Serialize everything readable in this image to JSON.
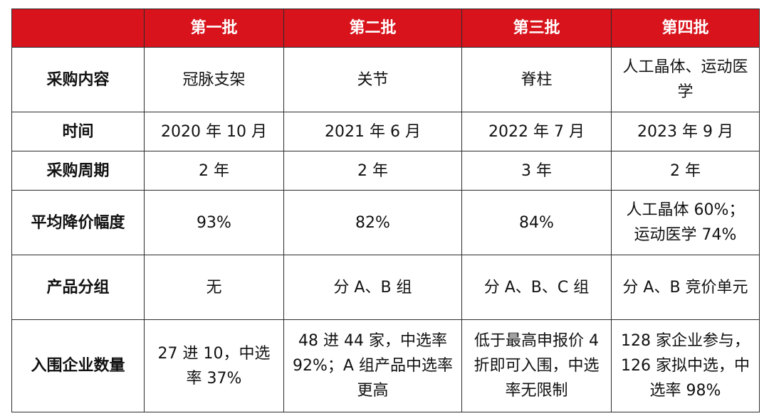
{
  "table": {
    "header": [
      "",
      "第一批",
      "第二批",
      "第三批",
      "第四批"
    ],
    "rows": [
      {
        "label": "采购内容",
        "cells": [
          "冠脉支架",
          "关节",
          "脊柱",
          "人工晶体、运动医学"
        ]
      },
      {
        "label": "时间",
        "cells": [
          "2020 年 10 月",
          "2021 年 6 月",
          "2022 年 7 月",
          "2023 年 9 月"
        ]
      },
      {
        "label": "采购周期",
        "cells": [
          "2 年",
          "2 年",
          "3 年",
          "2 年"
        ]
      },
      {
        "label": "平均降价幅度",
        "cells": [
          "93%",
          "82%",
          "84%",
          "人工晶体 60%；运动医学 74%"
        ]
      },
      {
        "label": "产品分组",
        "cells": [
          "无",
          "分 A、B 组",
          "分 A、B、C 组",
          "分 A、B 竞价单元"
        ]
      },
      {
        "label": "入围企业数量",
        "cells": [
          "27 进 10，中选率 37%",
          "48 进 44 家，中选率 92%；A 组产品中选率更高",
          "低于最高申报价 4 折即可入围，中选率无限制",
          "128 家企业参与，126 家拟中选，中选率 98%"
        ]
      }
    ]
  },
  "colors": {
    "header_bg": "#d8131b",
    "header_text": "#ffffff",
    "border": "#2b2b2b"
  }
}
